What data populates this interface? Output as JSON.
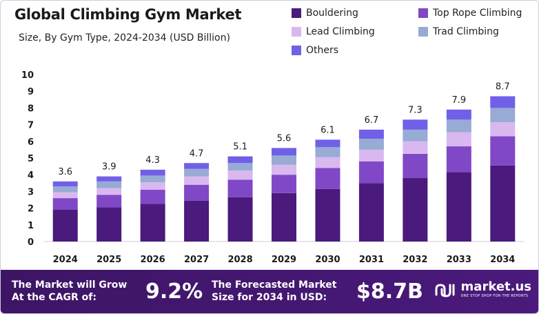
{
  "chart_data": {
    "type": "bar",
    "stacked": true,
    "title": "Global Climbing Gym Market",
    "subtitle": "Size, By Gym Type, 2024-2034 (USD Billion)",
    "categories": [
      "2024",
      "2025",
      "2026",
      "2027",
      "2028",
      "2029",
      "2030",
      "2031",
      "2032",
      "2033",
      "2034"
    ],
    "totals": [
      "3.6",
      "3.9",
      "4.3",
      "4.7",
      "5.1",
      "5.6",
      "6.1",
      "6.7",
      "7.3",
      "7.9",
      "8.7"
    ],
    "series": [
      {
        "name": "Bouldering",
        "color": "#4a1a7c",
        "values": [
          1.9,
          2.05,
          2.25,
          2.45,
          2.65,
          2.9,
          3.15,
          3.5,
          3.8,
          4.15,
          4.55
        ]
      },
      {
        "name": "Top Rope Climbing",
        "color": "#8048c6",
        "values": [
          0.7,
          0.75,
          0.85,
          0.95,
          1.05,
          1.1,
          1.25,
          1.3,
          1.45,
          1.55,
          1.75
        ]
      },
      {
        "name": "Lead Climbing",
        "color": "#d9b8ef",
        "values": [
          0.35,
          0.4,
          0.45,
          0.5,
          0.55,
          0.6,
          0.65,
          0.7,
          0.75,
          0.85,
          0.85
        ]
      },
      {
        "name": "Trad Climbing",
        "color": "#97abd4",
        "values": [
          0.35,
          0.4,
          0.4,
          0.45,
          0.45,
          0.55,
          0.6,
          0.65,
          0.7,
          0.75,
          0.85
        ]
      },
      {
        "name": "Others",
        "color": "#7060e8",
        "values": [
          0.3,
          0.3,
          0.35,
          0.35,
          0.4,
          0.45,
          0.45,
          0.55,
          0.6,
          0.6,
          0.7
        ]
      }
    ],
    "ylim": [
      0,
      10
    ],
    "yticks": [
      "0",
      "1",
      "2",
      "3",
      "4",
      "5",
      "6",
      "7",
      "8",
      "9",
      "10"
    ],
    "grid": false,
    "legend_position": "top-right"
  },
  "footer": {
    "cagr_label_line1": "The Market will Grow",
    "cagr_label_line2": "At the CAGR of:",
    "cagr_value": "9.2%",
    "forecast_label_line1": "The Forecasted Market",
    "forecast_label_line2": "Size for 2034 in USD:",
    "forecast_value": "$8.7B",
    "brand_name": "market.us",
    "brand_tagline": "ONE STOP SHOP FOR THE REPORTS",
    "brand_icon": "market-us-logo-icon"
  }
}
